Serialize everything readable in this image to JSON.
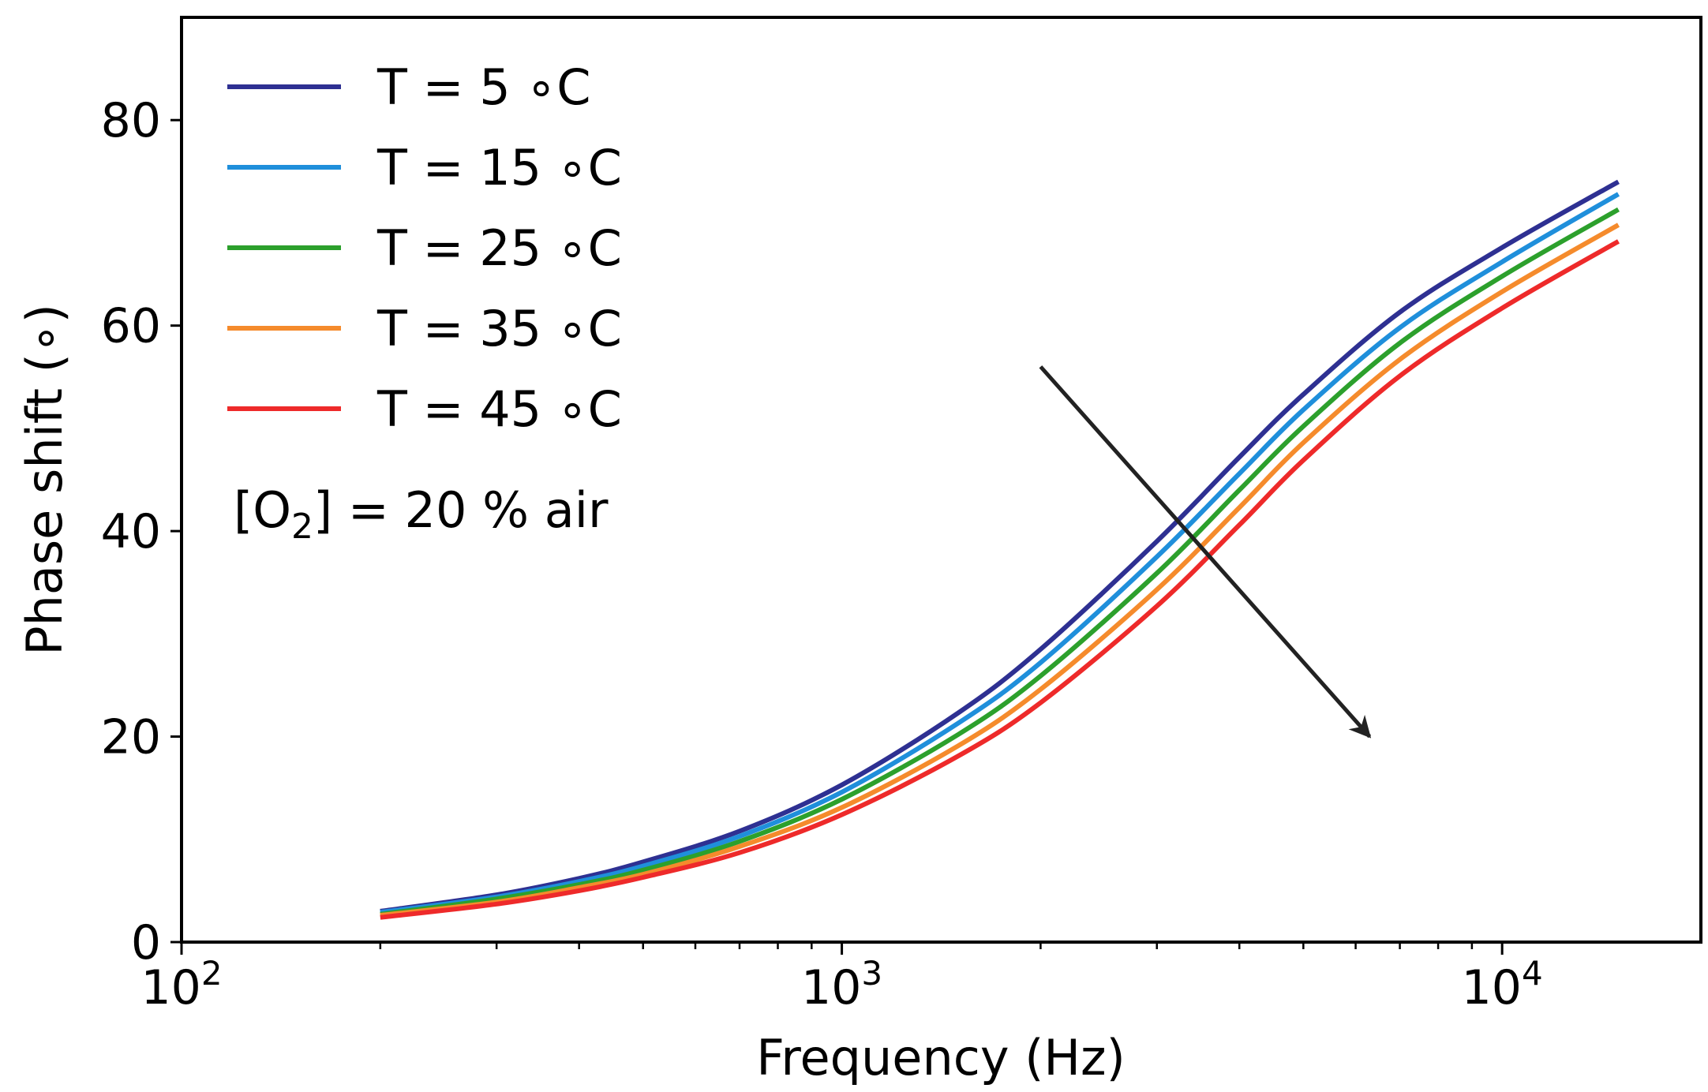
{
  "chart_data": {
    "type": "line",
    "title": "",
    "xlabel": "Frequency (Hz)",
    "ylabel": "Phase shift (∘)",
    "xscale": "log",
    "xlim": [
      100,
      20000
    ],
    "ylim": [
      0,
      90
    ],
    "grid": false,
    "legend_position": "top-left",
    "x_ticks": [
      {
        "value": 100,
        "base": "10",
        "exp": "2"
      },
      {
        "value": 1000,
        "base": "10",
        "exp": "3"
      },
      {
        "value": 10000,
        "base": "10",
        "exp": "4"
      }
    ],
    "y_ticks": [
      {
        "value": 0,
        "label": "0"
      },
      {
        "value": 20,
        "label": "20"
      },
      {
        "value": 40,
        "label": "40"
      },
      {
        "value": 60,
        "label": "60"
      },
      {
        "value": 80,
        "label": "80"
      }
    ],
    "x": [
      200,
      300,
      400,
      500,
      700,
      1000,
      1500,
      2000,
      3000,
      4000,
      5000,
      7000,
      10000,
      15000
    ],
    "series": [
      {
        "name": "T = 5 ∘C",
        "color": "#2e3092",
        "values": [
          3.0,
          4.6,
          6.2,
          7.8,
          10.8,
          15.3,
          22.3,
          28.5,
          39.0,
          47.2,
          53.3,
          61.3,
          67.6,
          74.0
        ]
      },
      {
        "name": "T = 15 ∘C",
        "color": "#1f8fdb",
        "values": [
          2.9,
          4.4,
          5.9,
          7.4,
          10.3,
          14.6,
          21.3,
          27.2,
          37.5,
          45.6,
          51.8,
          59.8,
          66.2,
          72.8
        ]
      },
      {
        "name": "T = 25 ∘C",
        "color": "#2ca02c",
        "values": [
          2.7,
          4.2,
          5.6,
          7.0,
          9.8,
          13.9,
          20.2,
          25.9,
          35.9,
          44.0,
          50.2,
          58.3,
          64.8,
          71.3
        ]
      },
      {
        "name": "T = 35 ∘C",
        "color": "#f58b2c",
        "values": [
          2.6,
          3.9,
          5.3,
          6.6,
          9.3,
          13.1,
          19.1,
          24.6,
          34.3,
          42.3,
          48.6,
          56.7,
          63.3,
          69.8
        ]
      },
      {
        "name": "T = 45 ∘C",
        "color": "#ee2a2a",
        "values": [
          2.4,
          3.7,
          5.0,
          6.3,
          8.7,
          12.4,
          18.1,
          23.3,
          32.7,
          40.6,
          46.9,
          55.1,
          61.7,
          68.2
        ]
      }
    ],
    "arrow": {
      "from": {
        "x": 2000,
        "y": 56
      },
      "to": {
        "x": 6300,
        "y": 20
      }
    },
    "annotation": {
      "prefix": "[O",
      "subscript": "2",
      "suffix": "] = 20 % air"
    }
  }
}
